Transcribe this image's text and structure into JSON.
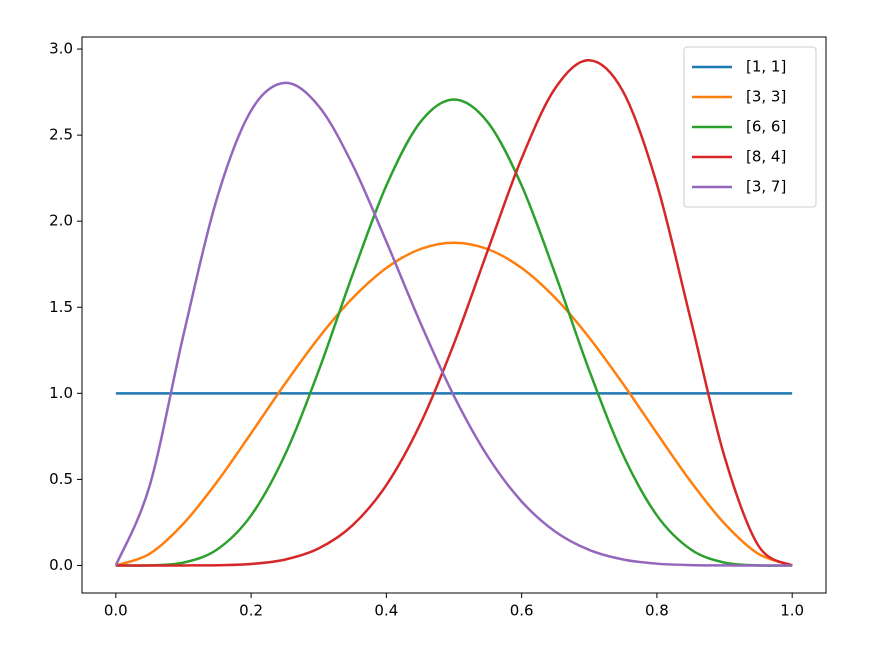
{
  "chart_data": {
    "type": "line",
    "x": [
      0,
      0.05,
      0.1,
      0.15,
      0.2,
      0.25,
      0.3,
      0.35,
      0.4,
      0.45,
      0.5,
      0.55,
      0.6,
      0.65,
      0.7,
      0.75,
      0.8,
      0.85,
      0.9,
      0.95,
      1
    ],
    "series": [
      {
        "name": "[1, 1]",
        "color": "#1f77b4",
        "values": [
          1,
          1,
          1,
          1,
          1,
          1,
          1,
          1,
          1,
          1,
          1,
          1,
          1,
          1,
          1,
          1,
          1,
          1,
          1,
          1,
          1
        ]
      },
      {
        "name": "[3, 3]",
        "color": "#ff7f0e",
        "values": [
          0,
          0.0677,
          0.243,
          0.4877,
          0.768,
          1.0547,
          1.323,
          1.5527,
          1.728,
          1.8377,
          1.875,
          1.8377,
          1.728,
          1.5527,
          1.323,
          1.0547,
          0.768,
          0.4877,
          0.243,
          0.0677,
          0
        ]
      },
      {
        "name": "[6, 6]",
        "color": "#2ca02c",
        "values": [
          0,
          0.0007,
          0.0164,
          0.0934,
          0.2907,
          0.6424,
          1.1321,
          1.6893,
          2.2072,
          2.5743,
          2.707,
          2.5743,
          2.2072,
          1.6893,
          1.1321,
          0.6424,
          0.2907,
          0.0934,
          0.0164,
          0.0007,
          0
        ]
      },
      {
        "name": "[8, 4]",
        "color": "#d62728",
        "values": [
          0,
          0,
          0.0001,
          0.0014,
          0.0087,
          0.034,
          0.099,
          0.2332,
          0.4671,
          0.8206,
          1.2891,
          1.8312,
          2.3649,
          2.7744,
          2.9351,
          2.7531,
          2.2146,
          1.4282,
          0.6314,
          0.1152,
          0
        ]
      },
      {
        "name": "[3, 7]",
        "color": "#9467bd",
        "values": [
          0,
          0.4631,
          1.3392,
          2.1384,
          2.6424,
          2.8032,
          2.6683,
          2.3282,
          1.8812,
          1.4125,
          0.9844,
          0.633,
          0.3716,
          0.1957,
          0.09,
          0.0346,
          0.0103,
          0.0021,
          0.0002,
          0,
          0
        ]
      }
    ],
    "xlim": [
      -0.05,
      1.05
    ],
    "xticks": [
      {
        "value": 0,
        "label": "0.0"
      },
      0.2,
      0.4,
      0.6,
      0.8,
      {
        "value": 1,
        "label": "1.0"
      }
    ],
    "ylim": [
      -0.16,
      3.07
    ],
    "yticks": [
      {
        "value": 0,
        "label": "0.0"
      },
      0.5,
      {
        "value": 1,
        "label": "1.0"
      },
      1.5,
      {
        "value": 2,
        "label": "2.0"
      },
      2.5,
      {
        "value": 3,
        "label": "3.0"
      }
    ],
    "legend": "upper right"
  }
}
